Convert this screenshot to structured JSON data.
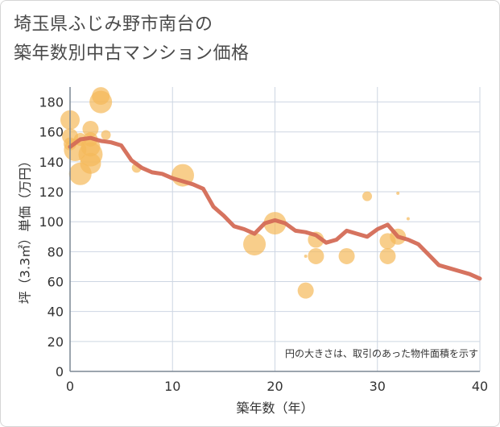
{
  "title_lines": [
    "埼玉県ふじみ野市南台の",
    "築年数別中古マンション価格"
  ],
  "chart_data": {
    "type": "scatter",
    "xlabel": "築年数（年）",
    "ylabel": "坪（3.3㎡）単価（万円）",
    "xlim": [
      0,
      40
    ],
    "ylim": [
      0,
      190
    ],
    "xticks": [
      0,
      10,
      20,
      30,
      40
    ],
    "yticks": [
      0,
      20,
      40,
      60,
      80,
      100,
      120,
      140,
      160,
      180
    ],
    "grid": true,
    "note": "円の大きさは、取引のあった物件面積を示す",
    "colors": {
      "bubble": "#f5b95a",
      "line": "#d46b56",
      "grid": "#cdd6e2",
      "axis": "#7b8794"
    },
    "bubbles": [
      {
        "x": 0,
        "y": 168,
        "size": 12
      },
      {
        "x": 0,
        "y": 157,
        "size": 10
      },
      {
        "x": 0,
        "y": 152,
        "size": 8
      },
      {
        "x": 0.5,
        "y": 148,
        "size": 14
      },
      {
        "x": 1,
        "y": 132,
        "size": 14
      },
      {
        "x": 1,
        "y": 155,
        "size": 8
      },
      {
        "x": 2,
        "y": 162,
        "size": 10
      },
      {
        "x": 2,
        "y": 155,
        "size": 9
      },
      {
        "x": 2,
        "y": 150,
        "size": 12
      },
      {
        "x": 2,
        "y": 145,
        "size": 15
      },
      {
        "x": 2,
        "y": 139,
        "size": 13
      },
      {
        "x": 3,
        "y": 184,
        "size": 11
      },
      {
        "x": 3,
        "y": 180,
        "size": 14
      },
      {
        "x": 3.5,
        "y": 158,
        "size": 6
      },
      {
        "x": 6.5,
        "y": 136,
        "size": 6
      },
      {
        "x": 11,
        "y": 131,
        "size": 14
      },
      {
        "x": 18,
        "y": 85,
        "size": 14
      },
      {
        "x": 20,
        "y": 99,
        "size": 14
      },
      {
        "x": 23,
        "y": 77,
        "size": 2
      },
      {
        "x": 23,
        "y": 54,
        "size": 10
      },
      {
        "x": 24,
        "y": 88,
        "size": 10
      },
      {
        "x": 24,
        "y": 77,
        "size": 10
      },
      {
        "x": 27,
        "y": 77,
        "size": 10
      },
      {
        "x": 29,
        "y": 117,
        "size": 6
      },
      {
        "x": 31,
        "y": 87,
        "size": 10
      },
      {
        "x": 31,
        "y": 77,
        "size": 10
      },
      {
        "x": 32,
        "y": 119,
        "size": 2
      },
      {
        "x": 32,
        "y": 90,
        "size": 10
      },
      {
        "x": 33,
        "y": 102,
        "size": 2
      }
    ],
    "trend": {
      "x": [
        0,
        1,
        2,
        3,
        4,
        5,
        6,
        7,
        8,
        9,
        10,
        11,
        12,
        13,
        14,
        15,
        16,
        17,
        18,
        19,
        20,
        21,
        22,
        23,
        24,
        25,
        26,
        27,
        28,
        29,
        30,
        31,
        32,
        33,
        34,
        35,
        36,
        37,
        38,
        39,
        40
      ],
      "y": [
        150,
        155,
        156,
        154,
        153,
        151,
        141,
        136,
        133,
        132,
        129,
        127,
        125,
        122,
        110,
        104,
        97,
        95,
        92,
        99,
        101,
        99,
        94,
        93,
        91,
        86,
        88,
        94,
        92,
        90,
        95,
        98,
        90,
        88,
        85,
        78,
        71,
        69,
        67,
        65,
        62
      ]
    }
  }
}
